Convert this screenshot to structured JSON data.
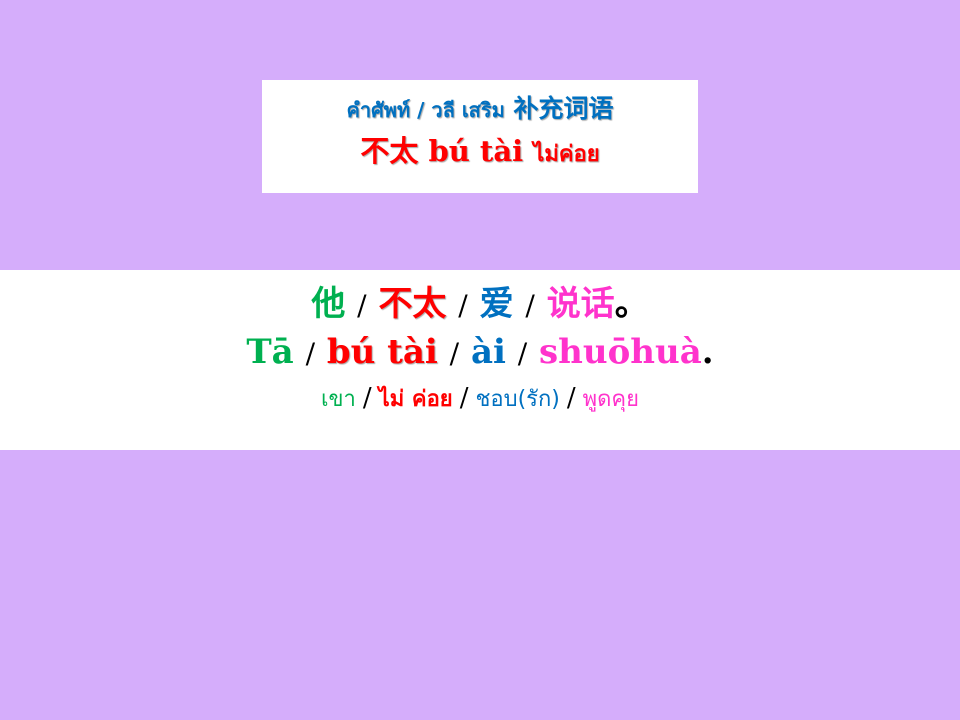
{
  "title": {
    "line1_thai": "คำศัพท์ / วลี เสริม",
    "line1_chinese": "补充词语",
    "line2_chinese": "不太",
    "line2_pinyin": "bú tài",
    "line2_thai": "ไม่ค่อย"
  },
  "sentence": {
    "separator": "/",
    "chinese": {
      "w1": "他",
      "w2": "不太",
      "w3": "爱",
      "w4": "说话",
      "end": "。"
    },
    "pinyin": {
      "w1": "Tā",
      "w2": "bú tài",
      "w3": "ài",
      "w4": "shuōhuà",
      "end": "."
    },
    "thai": {
      "w1": "เขา",
      "w2": "ไม่ ค่อย",
      "w3": "ชอบ(รัก)",
      "w4": "พูดคุย"
    }
  },
  "colors": {
    "background": "#d5adfb",
    "panel": "#ffffff",
    "green": "#00b050",
    "red": "#ff0000",
    "blue": "#0070c0",
    "pink": "#ff33cc"
  }
}
